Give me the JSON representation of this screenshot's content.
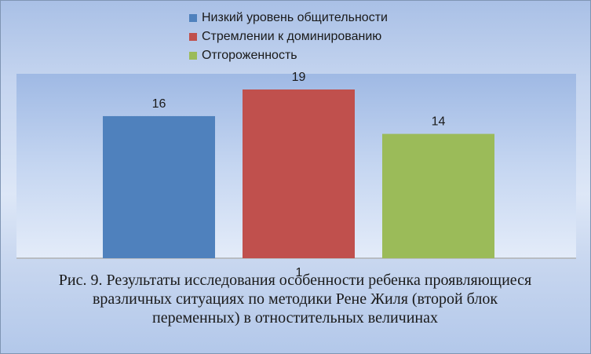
{
  "chart_data": {
    "type": "bar",
    "categories": [
      "1"
    ],
    "series": [
      {
        "name": "Низкий уровень общительности",
        "values": [
          16
        ],
        "color": "#4f81bd"
      },
      {
        "name": "Стремлении к доминированию",
        "values": [
          19
        ],
        "color": "#c0504d"
      },
      {
        "name": "Отгороженность",
        "values": [
          14
        ],
        "color": "#9bbb59"
      }
    ],
    "ylim": [
      0,
      21
    ],
    "legend_placement": "top",
    "grid": false
  },
  "caption": "Рис. 9. Результаты исследования особенности ребенка проявляющиеся вразличных ситуациях по методики Рене Жиля (второй блок переменных) в отностительных величинах"
}
